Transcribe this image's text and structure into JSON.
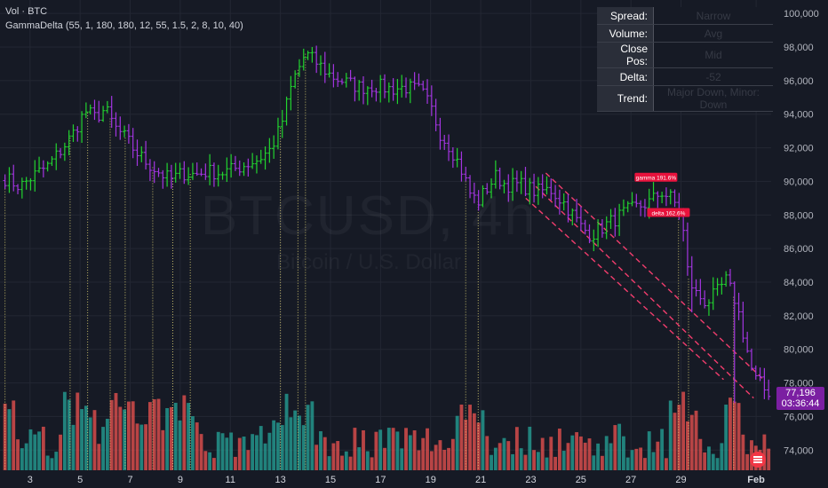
{
  "header": {
    "volume_label": "Vol · BTC",
    "indicator_label": "GammaDelta (55, 1, 180, 180, 12, 55, 1.5, 2, 8, 10, 40)"
  },
  "watermark": {
    "symbol": "BTCUSD, 4h",
    "description": "Bitcoin / U.S. Dollar"
  },
  "info_table": [
    {
      "key": "Spread:",
      "value": "Narrow"
    },
    {
      "key": "Volume:",
      "value": "Avg"
    },
    {
      "key": "Close Pos:",
      "value": "Mid"
    },
    {
      "key": "Delta:",
      "value": "-52"
    },
    {
      "key": "Trend:",
      "value": "Major Down, Minor: Down"
    }
  ],
  "price_label": {
    "price": "77,196",
    "countdown": "03:36:44"
  },
  "signals": [
    {
      "text": "gamma 191.6%",
      "x": 28.0,
      "y": 90250
    },
    {
      "text": "delta 162.6%",
      "x": 28.5,
      "y": 88150
    }
  ],
  "colors": {
    "background": "#161a25",
    "up_bar": "#22d32f",
    "down_bar": "#a335e0",
    "volume_up": "#26a69a",
    "volume_down": "#ef5350",
    "guide_line": "#f0e27a",
    "channel": "#f23d6d",
    "signal": "#e8123c",
    "price_label": "#7b1fa2"
  },
  "chart_data": {
    "type": "ohlc",
    "x_unit": "day of month (Jan, Feb 1 = 32)",
    "xlim": [
      1.8,
      32.6
    ],
    "ylim": [
      72800,
      100800
    ],
    "x_ticks": [
      {
        "x": 3,
        "label": "3"
      },
      {
        "x": 5,
        "label": "5"
      },
      {
        "x": 7,
        "label": "7"
      },
      {
        "x": 9,
        "label": "9"
      },
      {
        "x": 11,
        "label": "11"
      },
      {
        "x": 13,
        "label": "13"
      },
      {
        "x": 15,
        "label": "15"
      },
      {
        "x": 17,
        "label": "17"
      },
      {
        "x": 19,
        "label": "19"
      },
      {
        "x": 21,
        "label": "21"
      },
      {
        "x": 23,
        "label": "23"
      },
      {
        "x": 25,
        "label": "25"
      },
      {
        "x": 27,
        "label": "27"
      },
      {
        "x": 29,
        "label": "29"
      },
      {
        "x": 32,
        "label": "Feb"
      }
    ],
    "y_ticks": [
      74000,
      76000,
      78000,
      80000,
      82000,
      84000,
      86000,
      88000,
      90000,
      92000,
      94000,
      96000,
      98000,
      100000
    ],
    "anchors": [
      [
        2.0,
        90200
      ],
      [
        2.6,
        89700
      ],
      [
        3.2,
        90400
      ],
      [
        3.7,
        90900
      ],
      [
        4.2,
        91800
      ],
      [
        4.7,
        92800
      ],
      [
        5.2,
        94200
      ],
      [
        5.6,
        93800
      ],
      [
        6.0,
        94300
      ],
      [
        6.4,
        93200
      ],
      [
        6.8,
        92600
      ],
      [
        7.2,
        91800
      ],
      [
        7.6,
        91200
      ],
      [
        8.1,
        90600
      ],
      [
        8.6,
        90100
      ],
      [
        9.1,
        90500
      ],
      [
        9.6,
        90400
      ],
      [
        10.1,
        90600
      ],
      [
        10.6,
        90500
      ],
      [
        11.1,
        90700
      ],
      [
        11.6,
        91000
      ],
      [
        12.1,
        91300
      ],
      [
        12.6,
        91900
      ],
      [
        13.0,
        93200
      ],
      [
        13.5,
        96000
      ],
      [
        14.0,
        97600
      ],
      [
        14.5,
        97000
      ],
      [
        15.0,
        96300
      ],
      [
        15.6,
        95900
      ],
      [
        16.2,
        95600
      ],
      [
        16.8,
        95700
      ],
      [
        17.4,
        95500
      ],
      [
        18.0,
        95600
      ],
      [
        18.6,
        95400
      ],
      [
        19.0,
        94400
      ],
      [
        19.4,
        92800
      ],
      [
        19.8,
        92000
      ],
      [
        20.2,
        90800
      ],
      [
        20.6,
        89200
      ],
      [
        20.9,
        88800
      ],
      [
        21.2,
        89500
      ],
      [
        21.6,
        90300
      ],
      [
        22.0,
        89800
      ],
      [
        22.6,
        89800
      ],
      [
        23.2,
        89400
      ],
      [
        23.8,
        89500
      ],
      [
        24.4,
        88600
      ],
      [
        25.0,
        87300
      ],
      [
        25.4,
        86800
      ],
      [
        25.8,
        87200
      ],
      [
        26.3,
        87700
      ],
      [
        26.8,
        88200
      ],
      [
        27.3,
        88500
      ],
      [
        27.8,
        88800
      ],
      [
        28.2,
        89400
      ],
      [
        28.6,
        89000
      ],
      [
        29.0,
        88200
      ],
      [
        29.3,
        84200
      ],
      [
        29.6,
        83300
      ],
      [
        30.0,
        82800
      ],
      [
        30.4,
        83300
      ],
      [
        30.8,
        84100
      ],
      [
        31.2,
        82800
      ],
      [
        31.6,
        80200
      ],
      [
        31.9,
        78300
      ],
      [
        32.2,
        77900
      ],
      [
        32.5,
        77200
      ]
    ],
    "bar_count": 180,
    "spikes": [
      {
        "x": 5.2,
        "high": 94700
      },
      {
        "x": 13.9,
        "high": 97900
      },
      {
        "x": 14.2,
        "high": 98000
      },
      {
        "x": 29.4,
        "low": 82200
      },
      {
        "x": 31.1,
        "low": 76800
      }
    ],
    "guide_lines_x": [
      2.0,
      4.6,
      5.3,
      6.2,
      6.8,
      7.9,
      8.7,
      9.4,
      13.0,
      13.7,
      14.0,
      20.4,
      20.9,
      28.9,
      29.3,
      31.1
    ],
    "channel_lines": [
      {
        "from": [
          23.6,
          90500
        ],
        "to": [
          32.3,
          78200
        ]
      },
      {
        "from": [
          23.2,
          89700
        ],
        "to": [
          31.9,
          77100
        ]
      },
      {
        "from": [
          22.8,
          89000
        ],
        "to": [
          30.7,
          78200
        ]
      }
    ],
    "volume": {
      "max_height_fraction": 0.167,
      "scale_label": ""
    },
    "last_price": 77196
  }
}
